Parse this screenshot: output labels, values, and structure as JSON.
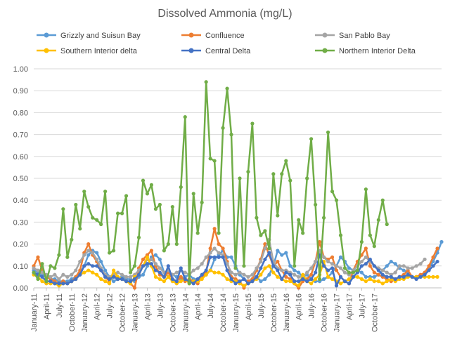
{
  "chart_data": {
    "type": "line",
    "title": "Dissolved Ammonia (mg/L)",
    "xlabel": "",
    "ylabel": "",
    "ylim": [
      0,
      1.0
    ],
    "yticks": [
      "0.00",
      "0.10",
      "0.20",
      "0.30",
      "0.40",
      "0.50",
      "0.60",
      "0.70",
      "0.80",
      "0.90",
      "1.00"
    ],
    "x_tick_labels": [
      "January-11",
      "April-11",
      "July-11",
      "October-11",
      "January-12",
      "April-12",
      "July-12",
      "October-12",
      "January-13",
      "April-13",
      "July-13",
      "October-13",
      "January-14",
      "April-14",
      "July-14",
      "October-14",
      "January-15",
      "April-15",
      "July-15",
      "October-15",
      "January-16",
      "April-16",
      "July-16",
      "October-16",
      "January-17",
      "April-17",
      "July-17",
      "October-17"
    ],
    "grid": true,
    "legend_position": "top",
    "series": [
      {
        "name": "Grizzly and Suisun Bay",
        "color": "#5B9BD5",
        "values": [
          0.08,
          0.07,
          0.06,
          0.05,
          0.04,
          0.04,
          0.03,
          0.03,
          0.03,
          0.04,
          0.05,
          0.07,
          0.1,
          0.15,
          0.17,
          0.16,
          0.12,
          0.08,
          0.05,
          0.03,
          0.04,
          0.05,
          0.04,
          0.04,
          0.03,
          0.05,
          0.06,
          0.1,
          0.14,
          0.15,
          0.13,
          0.07,
          0.05,
          0.06,
          0.05,
          0.04,
          0.05,
          0.06,
          0.04,
          0.04,
          0.05,
          0.06,
          0.08,
          0.13,
          0.15,
          0.17,
          0.14,
          0.14,
          0.1,
          0.06,
          0.04,
          0.03,
          0.04,
          0.05,
          0.03,
          0.04,
          0.06,
          0.1,
          0.17,
          0.15,
          0.16,
          0.1,
          0.08,
          0.07,
          0.05,
          0.06,
          0.04,
          0.03,
          0.03,
          0.04,
          0.05,
          0.07,
          0.1,
          0.14,
          0.12,
          0.09,
          0.08,
          0.08,
          0.07,
          0.05,
          0.05,
          0.05,
          0.06,
          0.08,
          0.1,
          0.12,
          0.11,
          0.09,
          0.08,
          0.07,
          0.05,
          0.05,
          0.05,
          0.07,
          0.09,
          0.12,
          0.16,
          0.21
        ]
      },
      {
        "name": "Confluence",
        "color": "#ED7D31",
        "values": [
          0.1,
          0.14,
          0.08,
          0.05,
          0.04,
          0.03,
          0.02,
          0.03,
          0.02,
          0.03,
          0.05,
          0.08,
          0.16,
          0.2,
          0.15,
          0.12,
          0.08,
          0.05,
          0.03,
          0.06,
          0.04,
          0.04,
          0.03,
          0.02,
          0.0,
          0.09,
          0.13,
          0.15,
          0.17,
          0.1,
          0.06,
          0.05,
          0.07,
          0.04,
          0.03,
          0.05,
          0.03,
          0.04,
          0.03,
          0.02,
          0.05,
          0.07,
          0.18,
          0.27,
          0.2,
          0.18,
          0.12,
          0.05,
          0.04,
          0.03,
          0.0,
          0.03,
          0.04,
          0.08,
          0.13,
          0.2,
          0.15,
          0.1,
          0.12,
          0.08,
          0.05,
          0.04,
          0.02,
          0.0,
          0.03,
          0.04,
          0.06,
          0.12,
          0.21,
          0.14,
          0.13,
          0.14,
          0.08,
          0.05,
          0.03,
          0.02,
          0.08,
          0.12,
          0.15,
          0.18,
          0.1,
          0.07,
          0.06,
          0.05,
          0.04,
          0.03,
          0.04,
          0.05,
          0.06,
          0.08,
          0.05,
          0.05,
          0.06,
          0.07,
          0.1,
          0.14,
          0.18
        ]
      },
      {
        "name": "San Pablo Bay",
        "color": "#A5A5A5",
        "values": [
          0.09,
          0.08,
          0.07,
          0.06,
          0.05,
          0.06,
          0.04,
          0.06,
          0.05,
          0.06,
          0.08,
          0.12,
          0.15,
          0.17,
          0.16,
          0.13,
          0.09,
          0.06,
          0.05,
          0.06,
          0.07,
          0.06,
          0.05,
          0.05,
          0.06,
          0.08,
          0.1,
          0.13,
          0.13,
          0.11,
          0.09,
          0.07,
          0.08,
          0.06,
          0.07,
          0.08,
          0.07,
          0.06,
          0.08,
          0.09,
          0.11,
          0.14,
          0.16,
          0.18,
          0.16,
          0.15,
          0.11,
          0.07,
          0.06,
          0.07,
          0.06,
          0.05,
          0.06,
          0.09,
          0.12,
          0.18,
          0.22,
          0.12,
          0.09,
          0.08,
          0.08,
          0.07,
          0.06,
          0.05,
          0.05,
          0.07,
          0.09,
          0.12,
          0.17,
          0.14,
          0.12,
          0.11,
          0.1,
          0.09,
          0.07,
          0.06,
          0.08,
          0.1,
          0.12,
          0.14,
          0.12,
          0.1,
          0.09,
          0.08,
          0.07,
          0.06,
          0.07,
          0.1,
          0.1,
          0.09,
          0.09,
          0.1,
          0.11,
          0.13
        ]
      },
      {
        "name": "Southern Interior delta",
        "color": "#FFC000",
        "values": [
          0.06,
          0.05,
          0.03,
          0.02,
          0.02,
          0.02,
          0.01,
          0.02,
          0.02,
          0.03,
          0.04,
          0.06,
          0.07,
          0.08,
          0.07,
          0.06,
          0.04,
          0.03,
          0.02,
          0.08,
          0.05,
          0.04,
          0.03,
          0.02,
          0.05,
          0.06,
          0.1,
          0.14,
          0.1,
          0.05,
          0.04,
          0.03,
          0.05,
          0.03,
          0.02,
          0.03,
          0.04,
          0.02,
          0.03,
          0.03,
          0.04,
          0.06,
          0.08,
          0.07,
          0.07,
          0.06,
          0.04,
          0.03,
          0.03,
          0.02,
          0.01,
          0.02,
          0.03,
          0.04,
          0.06,
          0.09,
          0.1,
          0.07,
          0.05,
          0.04,
          0.03,
          0.03,
          0.02,
          0.01,
          0.06,
          0.03,
          0.02,
          0.04,
          0.06,
          0.12,
          0.05,
          0.04,
          0.03,
          0.02,
          0.03,
          0.04,
          0.05,
          0.05,
          0.04,
          0.03,
          0.04,
          0.03,
          0.03,
          0.02,
          0.03,
          0.04,
          0.03,
          0.04,
          0.04,
          0.05,
          0.05,
          0.05,
          0.05,
          0.05,
          0.05,
          0.05,
          0.05
        ]
      },
      {
        "name": "Central Delta",
        "color": "#4472C4",
        "values": [
          0.07,
          0.06,
          0.05,
          0.03,
          0.03,
          0.02,
          0.02,
          0.02,
          0.02,
          0.03,
          0.04,
          0.06,
          0.1,
          0.11,
          0.1,
          0.1,
          0.08,
          0.05,
          0.04,
          0.05,
          0.04,
          0.04,
          0.03,
          0.03,
          0.04,
          0.06,
          0.1,
          0.11,
          0.11,
          0.08,
          0.07,
          0.05,
          0.1,
          0.04,
          0.03,
          0.09,
          0.04,
          0.03,
          0.02,
          0.04,
          0.06,
          0.08,
          0.14,
          0.14,
          0.14,
          0.14,
          0.08,
          0.04,
          0.02,
          0.03,
          0.04,
          0.02,
          0.03,
          0.05,
          0.09,
          0.13,
          0.16,
          0.1,
          0.08,
          0.04,
          0.07,
          0.06,
          0.03,
          0.03,
          0.04,
          0.03,
          0.04,
          0.07,
          0.15,
          0.1,
          0.08,
          0.09,
          0.01,
          0.05,
          0.03,
          0.02,
          0.05,
          0.07,
          0.1,
          0.11,
          0.13,
          0.1,
          0.08,
          0.06,
          0.05,
          0.05,
          0.04,
          0.05,
          0.05,
          0.06,
          0.05,
          0.04,
          0.05,
          0.06,
          0.08,
          0.1,
          0.12
        ]
      },
      {
        "name": "Northern Interior Delta",
        "color": "#70AD47",
        "values": [
          0.07,
          0.04,
          0.11,
          0.03,
          0.1,
          0.09,
          0.15,
          0.36,
          0.14,
          0.22,
          0.38,
          0.27,
          0.44,
          0.37,
          0.32,
          0.31,
          0.29,
          0.44,
          0.16,
          0.17,
          0.34,
          0.34,
          0.42,
          0.07,
          0.1,
          0.23,
          0.49,
          0.43,
          0.47,
          0.36,
          0.38,
          0.17,
          0.2,
          0.37,
          0.2,
          0.46,
          0.78,
          0.02,
          0.43,
          0.25,
          0.39,
          0.94,
          0.59,
          0.58,
          0.25,
          0.73,
          0.91,
          0.7,
          0.09,
          0.5,
          0.1,
          0.53,
          0.75,
          0.32,
          0.24,
          0.26,
          0.18,
          0.52,
          0.33,
          0.52,
          0.58,
          0.49,
          0.1,
          0.31,
          0.25,
          0.5,
          0.68,
          0.38,
          0.04,
          0.32,
          0.71,
          0.44,
          0.4,
          0.24,
          0.09,
          0.07,
          0.07,
          0.08,
          0.21,
          0.45,
          0.24,
          0.19,
          0.31,
          0.4,
          0.29
        ]
      }
    ]
  }
}
